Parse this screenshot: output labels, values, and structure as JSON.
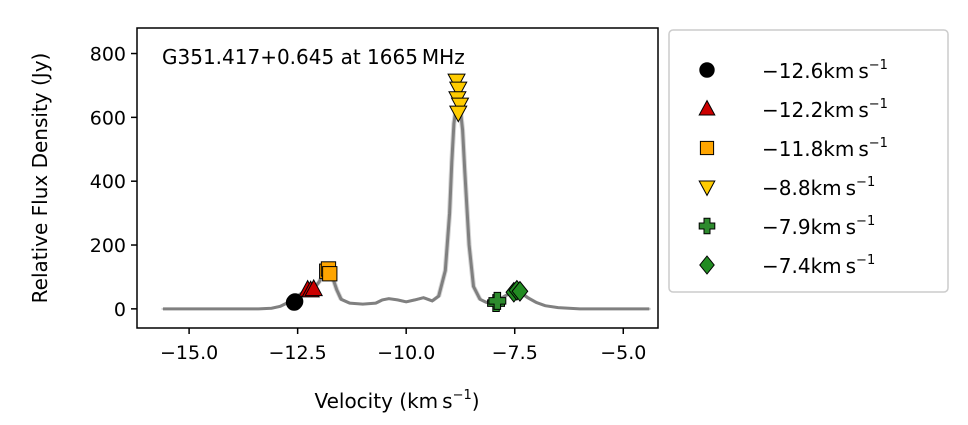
{
  "chart_data": {
    "type": "line",
    "annotation": "G351.417+0.645 at 1665 MHz",
    "xlabel": "Velocity (km s",
    "xlabel_sup": "−1",
    "xlabel_close": ")",
    "ylabel": "Relative Flux Density (Jy)",
    "xlim": [
      -16.2,
      -4.2
    ],
    "ylim": [
      -60,
      880
    ],
    "xticks": [
      -15.0,
      -12.5,
      -10.0,
      -7.5,
      -5.0
    ],
    "xtick_labels": [
      "−15.0",
      "−12.5",
      "−10.0",
      "−7.5",
      "−5.0"
    ],
    "yticks": [
      0,
      200,
      400,
      600,
      800
    ],
    "ytick_labels": [
      "0",
      "200",
      "400",
      "600",
      "800"
    ],
    "spectrum_color": "#808080",
    "spectrum": {
      "x": [
        -15.6,
        -13.4,
        -13.1,
        -12.9,
        -12.75,
        -12.6,
        -12.45,
        -12.3,
        -12.2,
        -12.1,
        -12.0,
        -11.9,
        -11.8,
        -11.7,
        -11.6,
        -11.5,
        -11.3,
        -11.0,
        -10.7,
        -10.55,
        -10.4,
        -10.2,
        -10.0,
        -9.8,
        -9.6,
        -9.5,
        -9.4,
        -9.25,
        -9.1,
        -9.0,
        -8.95,
        -8.9,
        -8.85,
        -8.8,
        -8.75,
        -8.7,
        -8.65,
        -8.55,
        -8.45,
        -8.3,
        -8.15,
        -8.0,
        -7.85,
        -7.7,
        -7.5,
        -7.35,
        -7.2,
        -7.0,
        -6.8,
        -6.5,
        -6.0,
        -5.0,
        -4.4
      ],
      "y": [
        0,
        0,
        2,
        8,
        18,
        30,
        45,
        58,
        62,
        68,
        85,
        110,
        120,
        100,
        60,
        30,
        18,
        15,
        18,
        28,
        32,
        28,
        22,
        28,
        35,
        30,
        25,
        40,
        120,
        300,
        460,
        580,
        630,
        640,
        620,
        560,
        430,
        200,
        70,
        30,
        20,
        22,
        30,
        42,
        55,
        50,
        35,
        20,
        10,
        4,
        0,
        0,
        0
      ]
    },
    "markers": [
      {
        "name": "−12.6km s",
        "sup": "−1",
        "shape": "circle",
        "color": "#000000",
        "points": [
          {
            "x": -12.58,
            "y": 20
          },
          {
            "x": -12.56,
            "y": 23
          }
        ]
      },
      {
        "name": "−12.2km s",
        "sup": "−1",
        "shape": "triangle-up",
        "color": "#cc0000",
        "points": [
          {
            "x": -12.27,
            "y": 60
          },
          {
            "x": -12.2,
            "y": 58
          },
          {
            "x": -12.13,
            "y": 62
          }
        ]
      },
      {
        "name": "−11.8km s",
        "sup": "−1",
        "shape": "square",
        "color": "#ffa500",
        "points": [
          {
            "x": -11.83,
            "y": 118
          },
          {
            "x": -11.79,
            "y": 125
          },
          {
            "x": -11.76,
            "y": 110
          }
        ]
      },
      {
        "name": "−8.8km s",
        "sup": "−1",
        "shape": "triangle-down",
        "color": "#ffcc00",
        "points": [
          {
            "x": -8.84,
            "y": 715
          },
          {
            "x": -8.8,
            "y": 690
          },
          {
            "x": -8.82,
            "y": 660
          },
          {
            "x": -8.76,
            "y": 640
          },
          {
            "x": -8.8,
            "y": 615
          }
        ]
      },
      {
        "name": "−7.9km s",
        "sup": "−1",
        "shape": "plus",
        "color": "#2e8b2e",
        "points": [
          {
            "x": -7.93,
            "y": 18
          },
          {
            "x": -7.9,
            "y": 25
          }
        ]
      },
      {
        "name": "−7.4km s",
        "sup": "−1",
        "shape": "diamond",
        "color": "#228b22",
        "points": [
          {
            "x": -7.52,
            "y": 52
          },
          {
            "x": -7.45,
            "y": 58
          },
          {
            "x": -7.38,
            "y": 55
          }
        ]
      }
    ]
  }
}
